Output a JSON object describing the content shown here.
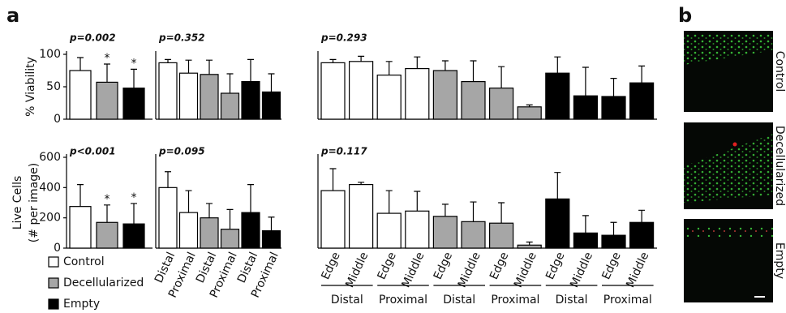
{
  "panel_a": {
    "label": "a",
    "legend": [
      {
        "name": "Control",
        "color": "#ffffff"
      },
      {
        "name": "Decellularized",
        "color": "#a6a6a6"
      },
      {
        "name": "Empty",
        "color": "#000000"
      }
    ]
  },
  "chart_data": [
    {
      "type": "bar",
      "ylabel": "% Viability",
      "pvalue": "p=0.002",
      "ylim": [
        0,
        100
      ],
      "yticks": [
        0,
        50,
        100
      ],
      "values": [
        75,
        57,
        48
      ],
      "errors": [
        20,
        28,
        29
      ],
      "colors": [
        "#ffffff",
        "#a6a6a6",
        "#000000"
      ],
      "asterisks": [
        null,
        "*",
        "*"
      ]
    },
    {
      "type": "bar",
      "pvalue": "p=0.352",
      "ylim": [
        0,
        100
      ],
      "values": [
        87,
        71,
        69,
        40,
        58,
        42
      ],
      "errors": [
        5,
        20,
        22,
        30,
        34,
        28
      ],
      "colors": [
        "#ffffff",
        "#ffffff",
        "#a6a6a6",
        "#a6a6a6",
        "#000000",
        "#000000"
      ]
    },
    {
      "type": "bar",
      "pvalue": "p=0.293",
      "ylim": [
        0,
        100
      ],
      "values": [
        87,
        89,
        68,
        78,
        75,
        58,
        48,
        19,
        71,
        36,
        35,
        56
      ],
      "errors": [
        5,
        8,
        21,
        18,
        15,
        32,
        33,
        3,
        25,
        44,
        28,
        26
      ],
      "colors": [
        "#ffffff",
        "#ffffff",
        "#ffffff",
        "#ffffff",
        "#a6a6a6",
        "#a6a6a6",
        "#a6a6a6",
        "#a6a6a6",
        "#000000",
        "#000000",
        "#000000",
        "#000000"
      ]
    },
    {
      "type": "bar",
      "ylabel": [
        "Live Cells",
        "(# per image)"
      ],
      "pvalue": "p<0.001",
      "ylim": [
        0,
        600
      ],
      "yticks": [
        0,
        200,
        400,
        600
      ],
      "values": [
        275,
        170,
        160
      ],
      "errors": [
        145,
        115,
        135
      ],
      "colors": [
        "#ffffff",
        "#a6a6a6",
        "#000000"
      ],
      "asterisks": [
        null,
        "*",
        "*"
      ]
    },
    {
      "type": "bar",
      "pvalue": "p=0.095",
      "ylim": [
        0,
        600
      ],
      "categories": [
        "Distal",
        "Proximal",
        "Distal",
        "Proximal",
        "Distal",
        "Proximal"
      ],
      "values": [
        400,
        235,
        200,
        125,
        235,
        115
      ],
      "errors": [
        105,
        145,
        95,
        130,
        185,
        90
      ],
      "colors": [
        "#ffffff",
        "#ffffff",
        "#a6a6a6",
        "#a6a6a6",
        "#000000",
        "#000000"
      ]
    },
    {
      "type": "bar",
      "pvalue": "p=0.117",
      "ylim": [
        0,
        600
      ],
      "categories": [
        "Edge",
        "Middle",
        "Edge",
        "Middle",
        "Edge",
        "Middle",
        "Edge",
        "Middle",
        "Edge",
        "Middle",
        "Edge",
        "Middle"
      ],
      "groups": [
        "Distal",
        "Proximal",
        "Distal",
        "Proximal",
        "Distal",
        "Proximal"
      ],
      "values": [
        380,
        420,
        230,
        245,
        210,
        175,
        165,
        20,
        325,
        100,
        85,
        170
      ],
      "errors": [
        145,
        15,
        150,
        130,
        80,
        130,
        135,
        20,
        175,
        115,
        85,
        80
      ],
      "colors": [
        "#ffffff",
        "#ffffff",
        "#ffffff",
        "#ffffff",
        "#a6a6a6",
        "#a6a6a6",
        "#a6a6a6",
        "#a6a6a6",
        "#000000",
        "#000000",
        "#000000",
        "#000000"
      ]
    }
  ],
  "panel_b": {
    "label": "b",
    "image_labels": [
      "Control",
      "Decellularized",
      "Empty"
    ]
  }
}
